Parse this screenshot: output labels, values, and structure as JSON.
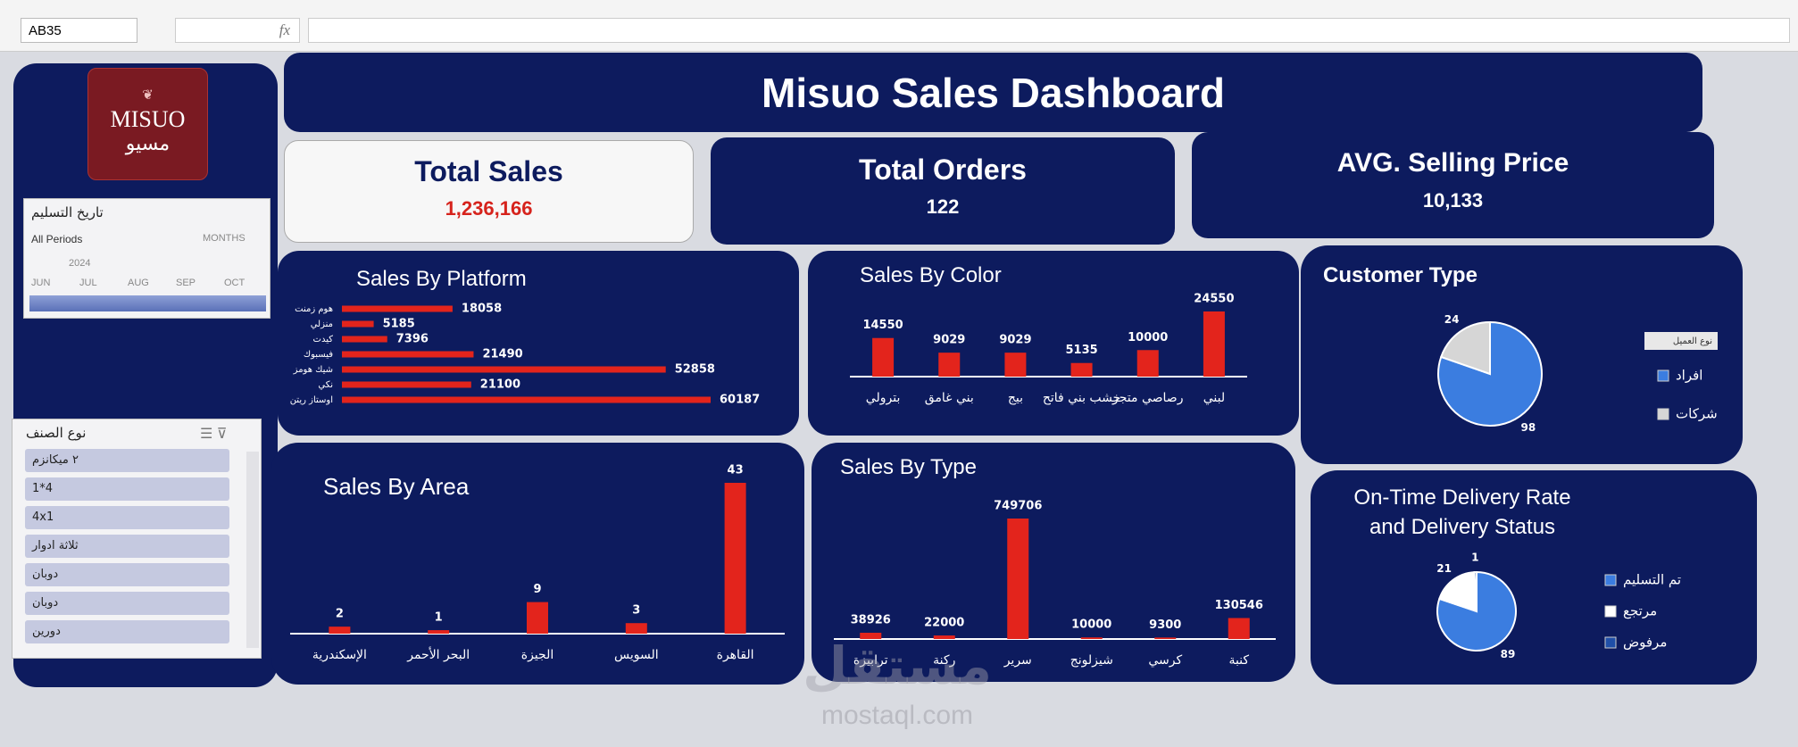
{
  "excel": {
    "name_box": "AB35",
    "formula_icon": "fx"
  },
  "header": {
    "title": "Misuo Sales Dashboard",
    "logo_text": "MISUO",
    "logo_arabic": "مسيو"
  },
  "kpis": [
    {
      "label": "Total Sales",
      "value": "1,236,166"
    },
    {
      "label": "Total Orders",
      "value": "122"
    },
    {
      "label": "AVG. Selling Price",
      "value": "10,133"
    }
  ],
  "date_slicer": {
    "title": "تاريخ التسليم",
    "period": "All Periods",
    "level": "MONTHS",
    "year": "2024",
    "months": [
      "JUN",
      "JUL",
      "AUG",
      "SEP",
      "OCT"
    ]
  },
  "category_slicer": {
    "title": "نوع الصنف",
    "items": [
      "٢ ميكانزم",
      "4*1",
      "4x1",
      "ثلاثة ادوار",
      "دوبان",
      "دوبان",
      "دورين"
    ]
  },
  "watermark": {
    "arabic": "مستقل",
    "url": "mostaql.com"
  },
  "chart_data": [
    {
      "type": "hbar",
      "title": "Sales By Platform",
      "categories": [
        "هوم زمنت",
        "منزلي",
        "كيدت",
        "فيسبوك",
        "شيك هومز",
        "نكي",
        "اوستاز ريتن"
      ],
      "values": [
        18058,
        5185,
        7396,
        21490,
        52858,
        21100,
        60187
      ],
      "color": "#e3241c"
    },
    {
      "type": "bar",
      "title": "Sales By Color",
      "categories": [
        "بترولي",
        "بني غامق",
        "بيج",
        "خشب بني فاتح",
        "رصاصي متجر",
        "لبني"
      ],
      "values": [
        14550,
        9029,
        9029,
        5135,
        10000,
        24550
      ],
      "color": "#e3241c"
    },
    {
      "type": "pie",
      "title": "Customer Type",
      "legend_title": "نوع العميل",
      "categories": [
        "افراد",
        "شركات"
      ],
      "values": [
        98,
        24
      ],
      "colors": [
        "#3b7de0",
        "#d6d6d6"
      ],
      "legend": "right"
    },
    {
      "type": "bar",
      "title": "Sales By Area",
      "categories": [
        "الإسكندرية",
        "البحر الأحمر",
        "الجيزة",
        "السويس",
        "القاهرة"
      ],
      "values": [
        2,
        1,
        9,
        3,
        43
      ],
      "color": "#e3241c"
    },
    {
      "type": "bar",
      "title": "Sales By Type",
      "categories": [
        "ترابيزة",
        "ركنة",
        "سرير",
        "شيزلونج",
        "كرسي",
        "كنبة"
      ],
      "values": [
        38926,
        22000,
        749706,
        10000,
        9300,
        130546
      ],
      "color": "#e3241c"
    },
    {
      "type": "pie",
      "title": "On-Time Delivery Rate and Delivery Status",
      "categories": [
        "تم التسليم",
        "مرتجع",
        "مرفوض"
      ],
      "values": [
        89,
        21,
        1
      ],
      "colors": [
        "#3b7de0",
        "#ffffff",
        "#1f4fa8"
      ],
      "legend": "right"
    }
  ]
}
